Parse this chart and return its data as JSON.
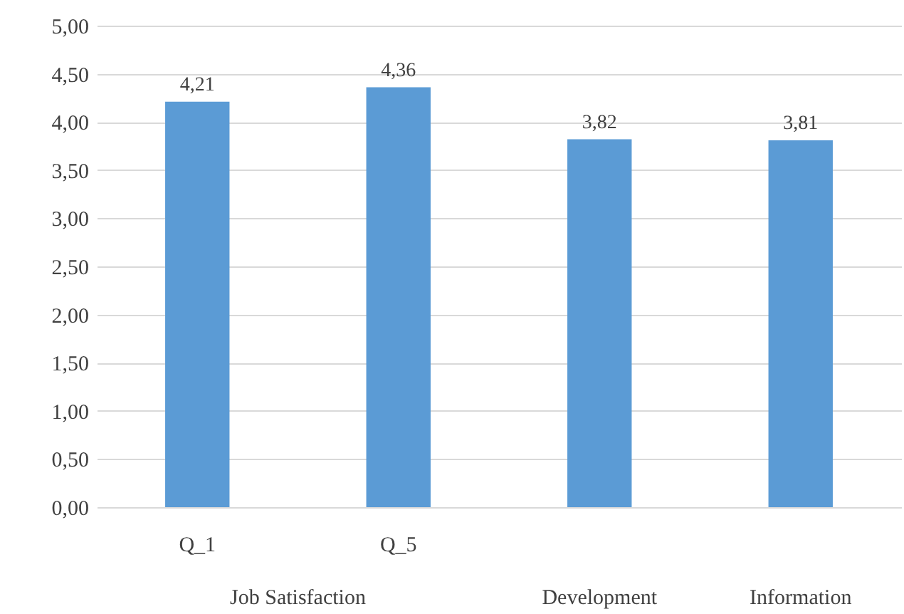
{
  "chart_data": {
    "type": "bar",
    "categories": [
      "Q_1",
      "Q_5",
      "Development",
      "Information"
    ],
    "values": [
      4.21,
      4.36,
      3.82,
      3.81
    ],
    "value_labels": [
      "4,21",
      "4,36",
      "3,82",
      "3,81"
    ],
    "color": "#5b9bd5",
    "annotations": [
      "Job Satisfaction"
    ],
    "ylim": [
      0,
      5
    ],
    "yticks": [
      {
        "value": 0,
        "label": "0,00"
      },
      {
        "value": 0.5,
        "label": "0,50"
      },
      {
        "value": 1,
        "label": "1,00"
      },
      {
        "value": 1.5,
        "label": "1,50"
      },
      {
        "value": 2,
        "label": "2,00"
      },
      {
        "value": 2.5,
        "label": "2,50"
      },
      {
        "value": 3,
        "label": "3,00"
      },
      {
        "value": 3.5,
        "label": "3,50"
      },
      {
        "value": 4,
        "label": "4,00"
      },
      {
        "value": 4.5,
        "label": "4,50"
      },
      {
        "value": 5,
        "label": "5,00"
      }
    ],
    "grid": "y"
  }
}
